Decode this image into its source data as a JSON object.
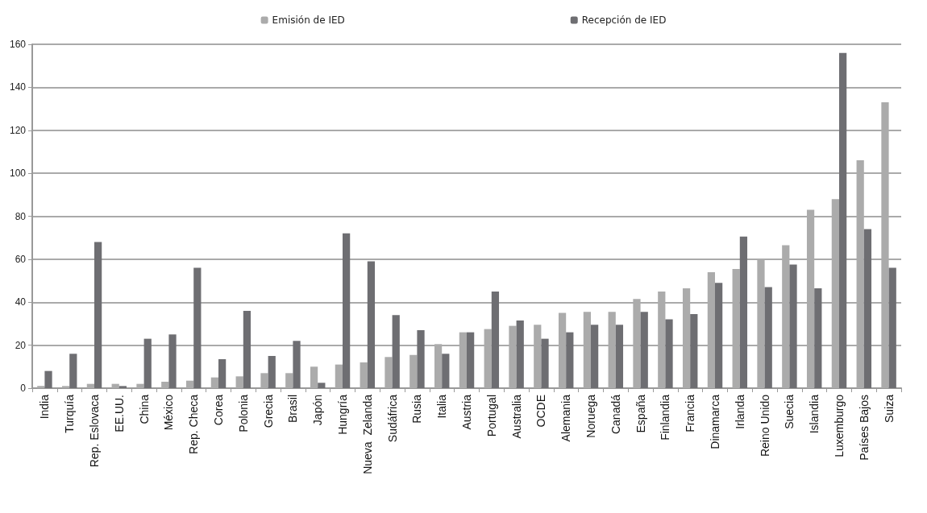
{
  "chart_data": {
    "type": "bar",
    "categories": [
      "India",
      "Turquía",
      "Rep. Eslovaca",
      "EE.UU.",
      "China",
      "México",
      "Rep. Checa",
      "Corea",
      "Polonia",
      "Grecia",
      "Brasil",
      "Japón",
      "Hungría",
      "Nueva  Zelanda",
      "Sudáfrica",
      "Rusia",
      "Italia",
      "Austria",
      "Portugal",
      "Australia",
      "OCDE",
      "Alemania",
      "Noruega",
      "Canadá",
      "España",
      "Finlandia",
      "Francia",
      "Dinamarca",
      "Irlanda",
      "Reino Unido",
      "Suecia",
      "Islandia",
      "Luxemburgo",
      "Países Bajos",
      "Suiza"
    ],
    "series": [
      {
        "name": "Emisión de IED",
        "color": "#ababab",
        "values": [
          1,
          1,
          2,
          2,
          2,
          3,
          3.5,
          5,
          5.5,
          7,
          7,
          10,
          11,
          12,
          14.5,
          15.5,
          20.5,
          26,
          27.5,
          29,
          29.5,
          35,
          35.5,
          35.5,
          41.5,
          45,
          46.5,
          54,
          55.5,
          60,
          66.5,
          83,
          88,
          106,
          133
        ]
      },
      {
        "name": "Recepción de IED",
        "color": "#6e6e72",
        "values": [
          8,
          16,
          68,
          1,
          23,
          25,
          56,
          13.5,
          36,
          15,
          22,
          2.5,
          72,
          59,
          34,
          27,
          16,
          26,
          45,
          31.5,
          23,
          26,
          29.5,
          29.5,
          35.5,
          32,
          34.5,
          49,
          70.5,
          47,
          57.5,
          46.5,
          156,
          74,
          56
        ]
      }
    ],
    "ylim": [
      0,
      160
    ],
    "yticks": [
      0,
      20,
      40,
      60,
      80,
      100,
      120,
      140,
      160
    ],
    "grid": "y",
    "legend": "top"
  }
}
